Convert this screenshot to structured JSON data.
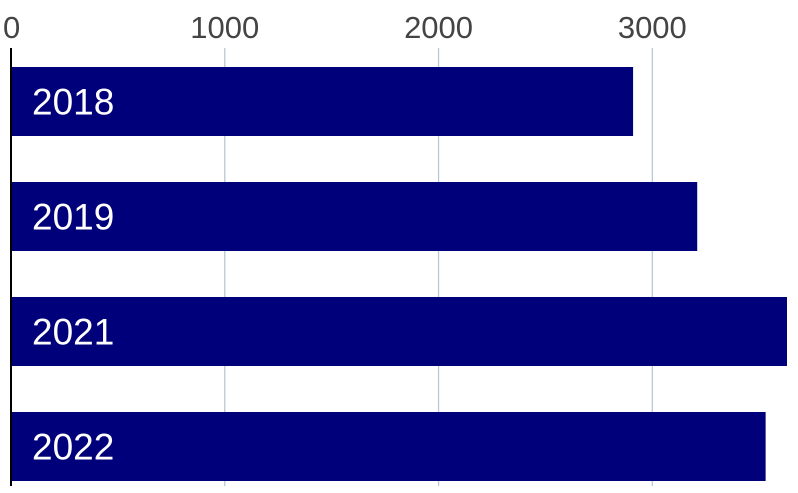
{
  "chart_data": {
    "type": "bar",
    "orientation": "horizontal",
    "title": "",
    "xlabel": "",
    "ylabel": "",
    "categories": [
      "2018",
      "2019",
      "2021",
      "2022"
    ],
    "values": [
      2910,
      3210,
      3630,
      3530
    ],
    "xlim": [
      0,
      3630
    ],
    "xticks": [
      0,
      1000,
      2000,
      3000
    ],
    "xtick_labels": [
      "0",
      "1000",
      "2000",
      "3000"
    ],
    "grid": "vertical",
    "category_labels_position": "inside-bar-left",
    "colors": {
      "bar": "#00007a",
      "grid": "#b8c8d8",
      "axis": "#000000",
      "tick_text": "#444444",
      "bar_text": "#ffffff"
    }
  }
}
